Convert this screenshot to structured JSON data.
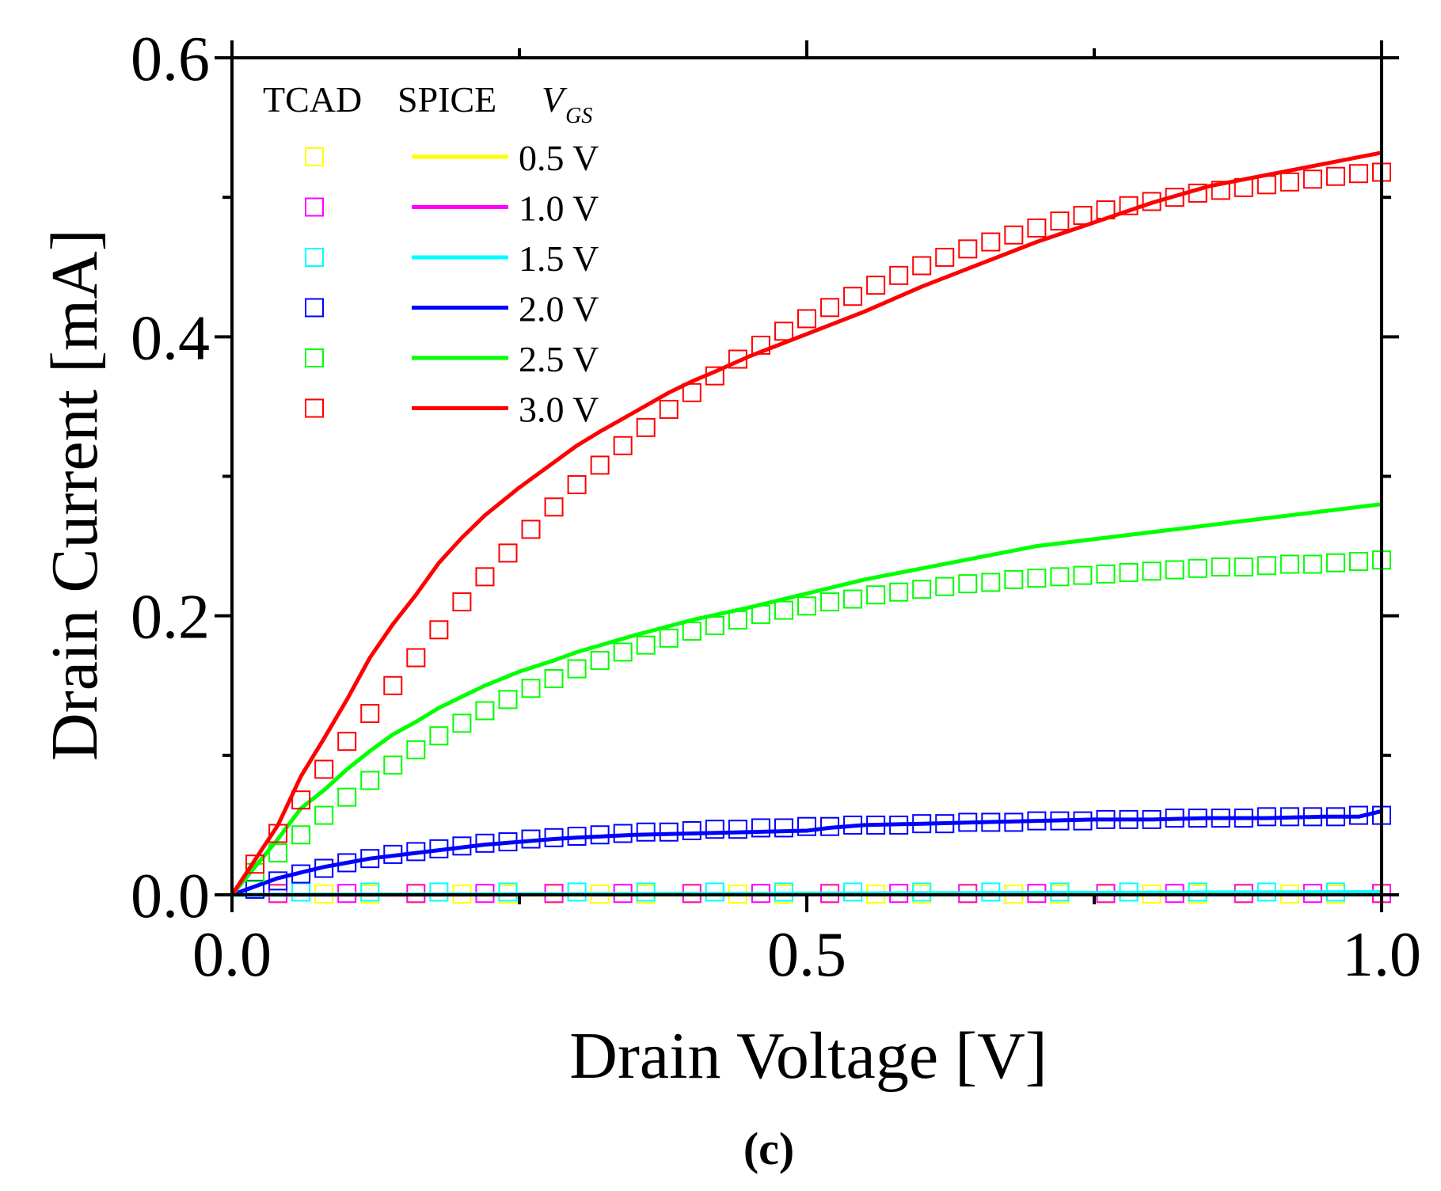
{
  "chart_data": {
    "type": "line",
    "xlabel": "Drain Voltage [V]",
    "ylabel": "Drain Current [mA]",
    "xlim": [
      0,
      1.0
    ],
    "ylim": [
      0,
      0.6
    ],
    "xticks": [
      0.0,
      0.5,
      1.0
    ],
    "xtick_labels": [
      "0.0",
      "0.5",
      "1.0"
    ],
    "xminor": [
      0.25,
      0.75
    ],
    "yticks": [
      0.0,
      0.2,
      0.4,
      0.6
    ],
    "ytick_labels": [
      "0.0",
      "0.2",
      "0.4",
      "0.6"
    ],
    "yminor": [
      0.1,
      0.3,
      0.5
    ],
    "grid": false,
    "legend_position": "top-left",
    "legend_headers": {
      "tcad": "TCAD",
      "spice": "SPICE",
      "vgs_main": "V",
      "vgs_sub": "GS"
    },
    "panel_label": "(c)",
    "series": [
      {
        "name": "0.5 V",
        "color": "#ffff00",
        "spice": {
          "x": [
            0,
            1.0
          ],
          "y": [
            0,
            0.0005
          ]
        },
        "tcad": {
          "x": [
            0.04,
            0.08,
            0.12,
            0.16,
            0.2,
            0.24,
            0.28,
            0.32,
            0.36,
            0.4,
            0.44,
            0.48,
            0.52,
            0.56,
            0.6,
            0.64,
            0.68,
            0.72,
            0.76,
            0.8,
            0.84,
            0.88,
            0.92,
            0.96,
            1.0
          ],
          "y": [
            0.0005,
            0.0005,
            0.0005,
            0.0005,
            0.0005,
            0.0005,
            0.0005,
            0.0005,
            0.0005,
            0.0005,
            0.0005,
            0.0005,
            0.0005,
            0.0005,
            0.0005,
            0.0005,
            0.0005,
            0.0005,
            0.0005,
            0.0005,
            0.0005,
            0.0005,
            0.0005,
            0.0005,
            0.0005
          ]
        }
      },
      {
        "name": "1.0 V",
        "color": "#ff00ff",
        "spice": {
          "x": [
            0,
            1.0
          ],
          "y": [
            0,
            0.001
          ]
        },
        "tcad": {
          "x": [
            0.04,
            0.1,
            0.16,
            0.22,
            0.28,
            0.34,
            0.4,
            0.46,
            0.52,
            0.58,
            0.64,
            0.7,
            0.76,
            0.82,
            0.88,
            0.94,
            1.0
          ],
          "y": [
            0.001,
            0.001,
            0.001,
            0.001,
            0.001,
            0.001,
            0.001,
            0.001,
            0.001,
            0.001,
            0.001,
            0.001,
            0.001,
            0.001,
            0.001,
            0.001,
            0.001
          ]
        }
      },
      {
        "name": "1.5 V",
        "color": "#00ffff",
        "spice": {
          "x": [
            0,
            1.0
          ],
          "y": [
            0,
            0.002
          ]
        },
        "tcad": {
          "x": [
            0.06,
            0.12,
            0.18,
            0.24,
            0.3,
            0.36,
            0.42,
            0.48,
            0.54,
            0.6,
            0.66,
            0.72,
            0.78,
            0.84,
            0.9,
            0.96
          ],
          "y": [
            0.002,
            0.002,
            0.002,
            0.002,
            0.002,
            0.002,
            0.002,
            0.002,
            0.002,
            0.002,
            0.002,
            0.002,
            0.002,
            0.002,
            0.002,
            0.002
          ]
        }
      },
      {
        "name": "2.0 V",
        "color": "#0000ff",
        "spice": {
          "x": [
            0,
            0.02,
            0.04,
            0.06,
            0.08,
            0.1,
            0.12,
            0.15,
            0.18,
            0.2,
            0.22,
            0.25,
            0.28,
            0.3,
            0.35,
            0.4,
            0.45,
            0.5,
            0.52,
            0.55,
            0.6,
            0.65,
            0.7,
            0.75,
            0.8,
            0.85,
            0.9,
            0.95,
            0.98,
            1.0
          ],
          "y": [
            0,
            0.006,
            0.012,
            0.016,
            0.02,
            0.023,
            0.026,
            0.029,
            0.032,
            0.034,
            0.036,
            0.038,
            0.04,
            0.041,
            0.043,
            0.044,
            0.045,
            0.046,
            0.048,
            0.05,
            0.051,
            0.052,
            0.053,
            0.054,
            0.054,
            0.055,
            0.055,
            0.056,
            0.056,
            0.06
          ]
        },
        "tcad": {
          "x": [
            0.02,
            0.04,
            0.06,
            0.08,
            0.1,
            0.12,
            0.14,
            0.16,
            0.18,
            0.2,
            0.22,
            0.24,
            0.26,
            0.28,
            0.3,
            0.32,
            0.34,
            0.36,
            0.38,
            0.4,
            0.42,
            0.44,
            0.46,
            0.48,
            0.5,
            0.52,
            0.54,
            0.56,
            0.58,
            0.6,
            0.62,
            0.64,
            0.66,
            0.68,
            0.7,
            0.72,
            0.74,
            0.76,
            0.78,
            0.8,
            0.82,
            0.84,
            0.86,
            0.88,
            0.9,
            0.92,
            0.94,
            0.96,
            0.98,
            1.0
          ],
          "y": [
            0.004,
            0.01,
            0.015,
            0.019,
            0.023,
            0.026,
            0.029,
            0.031,
            0.033,
            0.035,
            0.037,
            0.038,
            0.04,
            0.041,
            0.042,
            0.043,
            0.044,
            0.045,
            0.045,
            0.046,
            0.047,
            0.047,
            0.048,
            0.048,
            0.049,
            0.049,
            0.05,
            0.05,
            0.05,
            0.051,
            0.051,
            0.052,
            0.052,
            0.052,
            0.053,
            0.053,
            0.053,
            0.054,
            0.054,
            0.054,
            0.055,
            0.055,
            0.055,
            0.055,
            0.056,
            0.056,
            0.056,
            0.056,
            0.057,
            0.057
          ]
        }
      },
      {
        "name": "2.5 V",
        "color": "#00ff00",
        "spice": {
          "x": [
            0,
            0.02,
            0.04,
            0.06,
            0.08,
            0.1,
            0.12,
            0.14,
            0.16,
            0.18,
            0.2,
            0.22,
            0.25,
            0.28,
            0.3,
            0.35,
            0.4,
            0.45,
            0.5,
            0.55,
            0.6,
            0.65,
            0.7,
            0.75,
            0.8,
            0.85,
            0.9,
            0.95,
            1.0
          ],
          "y": [
            0,
            0.02,
            0.04,
            0.062,
            0.075,
            0.09,
            0.103,
            0.115,
            0.124,
            0.134,
            0.142,
            0.15,
            0.16,
            0.168,
            0.174,
            0.186,
            0.197,
            0.206,
            0.216,
            0.226,
            0.234,
            0.242,
            0.25,
            0.255,
            0.26,
            0.265,
            0.27,
            0.275,
            0.28
          ]
        },
        "tcad": {
          "x": [
            0.02,
            0.04,
            0.06,
            0.08,
            0.1,
            0.12,
            0.14,
            0.16,
            0.18,
            0.2,
            0.22,
            0.24,
            0.26,
            0.28,
            0.3,
            0.32,
            0.34,
            0.36,
            0.38,
            0.4,
            0.42,
            0.44,
            0.46,
            0.48,
            0.5,
            0.52,
            0.54,
            0.56,
            0.58,
            0.6,
            0.62,
            0.64,
            0.66,
            0.68,
            0.7,
            0.72,
            0.74,
            0.76,
            0.78,
            0.8,
            0.82,
            0.84,
            0.86,
            0.88,
            0.9,
            0.92,
            0.94,
            0.96,
            0.98,
            1.0
          ],
          "y": [
            0.016,
            0.03,
            0.043,
            0.057,
            0.07,
            0.082,
            0.093,
            0.104,
            0.114,
            0.123,
            0.132,
            0.14,
            0.148,
            0.155,
            0.162,
            0.168,
            0.174,
            0.179,
            0.184,
            0.189,
            0.193,
            0.197,
            0.201,
            0.204,
            0.207,
            0.21,
            0.212,
            0.215,
            0.217,
            0.219,
            0.221,
            0.223,
            0.224,
            0.226,
            0.227,
            0.228,
            0.229,
            0.23,
            0.231,
            0.232,
            0.233,
            0.234,
            0.235,
            0.235,
            0.236,
            0.237,
            0.237,
            0.238,
            0.239,
            0.24
          ]
        }
      },
      {
        "name": "3.0 V",
        "color": "#ff0000",
        "spice": {
          "x": [
            0,
            0.02,
            0.04,
            0.06,
            0.08,
            0.1,
            0.12,
            0.14,
            0.16,
            0.18,
            0.2,
            0.22,
            0.25,
            0.28,
            0.3,
            0.32,
            0.35,
            0.38,
            0.4,
            0.42,
            0.45,
            0.5,
            0.55,
            0.6,
            0.65,
            0.7,
            0.75,
            0.8,
            0.85,
            0.9,
            0.95,
            1.0
          ],
          "y": [
            0,
            0.025,
            0.05,
            0.085,
            0.112,
            0.14,
            0.17,
            0.194,
            0.215,
            0.238,
            0.256,
            0.272,
            0.292,
            0.31,
            0.322,
            0.332,
            0.346,
            0.36,
            0.368,
            0.375,
            0.386,
            0.402,
            0.418,
            0.436,
            0.452,
            0.468,
            0.482,
            0.496,
            0.508,
            0.516,
            0.524,
            0.532
          ]
        },
        "tcad": {
          "x": [
            0.02,
            0.04,
            0.06,
            0.08,
            0.1,
            0.12,
            0.14,
            0.16,
            0.18,
            0.2,
            0.22,
            0.24,
            0.26,
            0.28,
            0.3,
            0.32,
            0.34,
            0.36,
            0.38,
            0.4,
            0.42,
            0.44,
            0.46,
            0.48,
            0.5,
            0.52,
            0.54,
            0.56,
            0.58,
            0.6,
            0.62,
            0.64,
            0.66,
            0.68,
            0.7,
            0.72,
            0.74,
            0.76,
            0.78,
            0.8,
            0.82,
            0.84,
            0.86,
            0.88,
            0.9,
            0.92,
            0.94,
            0.96,
            0.98,
            1.0
          ],
          "y": [
            0.022,
            0.044,
            0.068,
            0.09,
            0.11,
            0.13,
            0.15,
            0.17,
            0.19,
            0.21,
            0.228,
            0.245,
            0.262,
            0.278,
            0.294,
            0.308,
            0.322,
            0.335,
            0.348,
            0.36,
            0.372,
            0.384,
            0.394,
            0.404,
            0.413,
            0.421,
            0.429,
            0.437,
            0.444,
            0.451,
            0.457,
            0.463,
            0.468,
            0.473,
            0.478,
            0.483,
            0.487,
            0.491,
            0.494,
            0.497,
            0.5,
            0.503,
            0.505,
            0.507,
            0.509,
            0.511,
            0.513,
            0.515,
            0.517,
            0.518
          ]
        }
      }
    ]
  }
}
